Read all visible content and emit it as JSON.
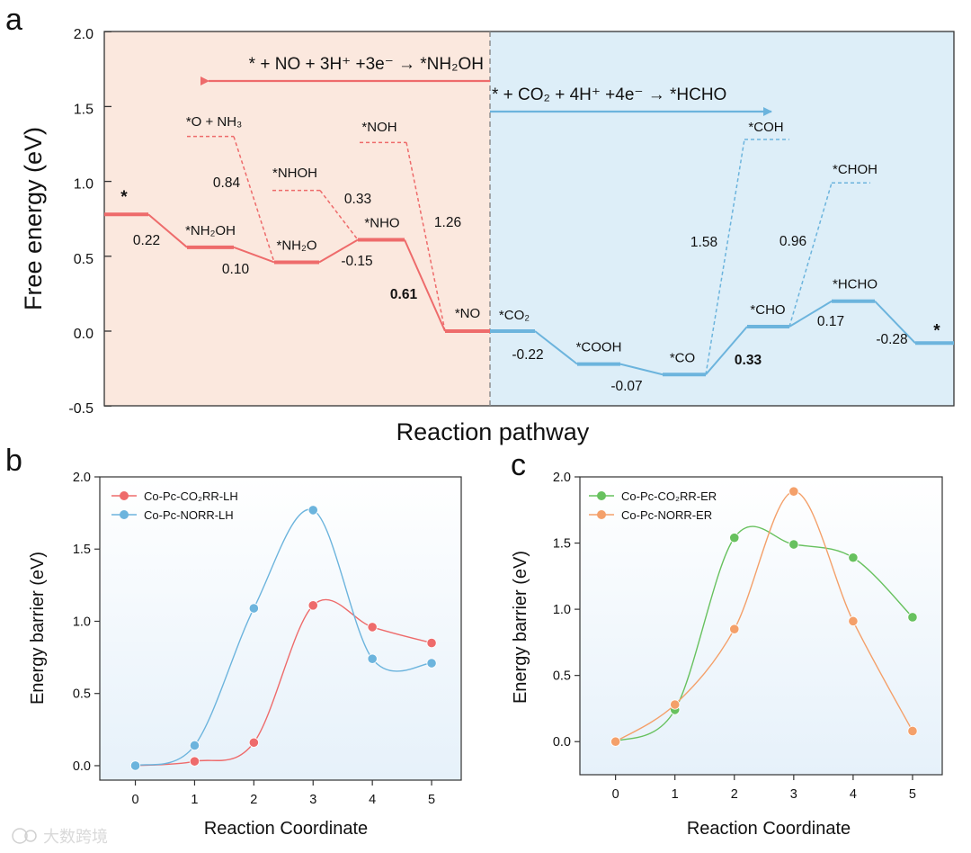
{
  "panel_labels": {
    "a": "a",
    "b": "b",
    "c": "c"
  },
  "colors": {
    "red": "#ee6b6b",
    "blue": "#6cb4dd",
    "green": "#67c15e",
    "orange": "#f4a06a",
    "left_bg": "#fbe8de",
    "right_bg": "#ddeef8"
  },
  "watermark": "大数跨境",
  "chart_data": [
    {
      "id": "a",
      "type": "line",
      "xlabel": "Reaction pathway",
      "ylabel": "Free energy (eV)",
      "ylim": [
        -0.5,
        2.0
      ],
      "yticks": [
        "-0.5",
        "0.0",
        "0.5",
        "1.0",
        "1.5",
        "2.0"
      ],
      "arrows": {
        "left": "* + NO + 3H⁺ +3e⁻ → *NH₂OH",
        "right": "* + CO₂ + 4H⁺ +4e⁻ → *HCHO"
      },
      "nrr_levels": [
        {
          "label": "*",
          "energy": 0.78
        },
        {
          "label": "*NH₂OH",
          "energy": 0.56
        },
        {
          "label": "*NH₂O",
          "energy": 0.46
        },
        {
          "label": "*NHO",
          "energy": 0.61
        },
        {
          "label": "*NO",
          "energy": 0.0
        }
      ],
      "nrr_steps": [
        "0.22",
        "0.10",
        "-0.15",
        "0.61"
      ],
      "nrr_branches": [
        {
          "label": "*O + NH₃",
          "energy": 1.3,
          "barrier": "0.84"
        },
        {
          "label": "*NHOH",
          "energy": 0.94,
          "barrier": "0.33"
        },
        {
          "label": "*NOH",
          "energy": 1.26,
          "barrier": "1.26"
        }
      ],
      "co2_levels": [
        {
          "label": "*CO₂",
          "energy": 0.0
        },
        {
          "label": "*COOH",
          "energy": -0.22
        },
        {
          "label": "*CO",
          "energy": -0.29
        },
        {
          "label": "*CHO",
          "energy": 0.03
        },
        {
          "label": "*HCHO",
          "energy": 0.2
        },
        {
          "label": "*",
          "energy": -0.08
        }
      ],
      "co2_steps": [
        "-0.22",
        "-0.07",
        "0.33",
        "0.17",
        "-0.28"
      ],
      "co2_branches": [
        {
          "label": "*COH",
          "energy": 1.28,
          "barrier": "1.58"
        },
        {
          "label": "*CHOH",
          "energy": 0.99,
          "barrier": "0.96"
        }
      ]
    },
    {
      "id": "b",
      "type": "line",
      "xlabel": "Reaction Coordinate",
      "ylabel": "Energy barrier (eV)",
      "xlim": [
        -0.6,
        5.5
      ],
      "ylim": [
        -0.1,
        2.0
      ],
      "xticks": [
        "0",
        "1",
        "2",
        "3",
        "4",
        "5"
      ],
      "yticks": [
        "0.0",
        "0.5",
        "1.0",
        "1.5",
        "2.0"
      ],
      "legend": [
        "Co-Pc-CO₂RR-LH",
        "Co-Pc-NORR-LH"
      ],
      "series": [
        {
          "name": "Co-Pc-CO₂RR-LH",
          "x": [
            0,
            1,
            2,
            3,
            4,
            5
          ],
          "values": [
            0.0,
            0.03,
            0.16,
            1.11,
            0.96,
            0.85
          ]
        },
        {
          "name": "Co-Pc-NORR-LH",
          "x": [
            0,
            1,
            2,
            3,
            4,
            5
          ],
          "values": [
            0.0,
            0.14,
            1.09,
            1.77,
            0.74,
            0.71
          ]
        }
      ]
    },
    {
      "id": "c",
      "type": "line",
      "xlabel": "Reaction Coordinate",
      "ylabel": "Energy barrier (eV)",
      "xlim": [
        -0.6,
        5.5
      ],
      "ylim": [
        -0.25,
        2.0
      ],
      "xticks": [
        "0",
        "1",
        "2",
        "3",
        "4",
        "5"
      ],
      "yticks": [
        "0.0",
        "0.5",
        "1.0",
        "1.5",
        "2.0"
      ],
      "legend": [
        "Co-Pc-CO₂RR-ER",
        "Co-Pc-NORR-ER"
      ],
      "series": [
        {
          "name": "Co-Pc-CO₂RR-ER",
          "x": [
            0,
            1,
            2,
            3,
            4,
            5
          ],
          "values": [
            0.0,
            0.24,
            1.54,
            1.49,
            1.39,
            0.94
          ]
        },
        {
          "name": "Co-Pc-NORR-ER",
          "x": [
            0,
            1,
            2,
            3,
            4,
            5
          ],
          "values": [
            0.0,
            0.28,
            0.85,
            1.89,
            0.91,
            0.08
          ]
        }
      ]
    }
  ]
}
